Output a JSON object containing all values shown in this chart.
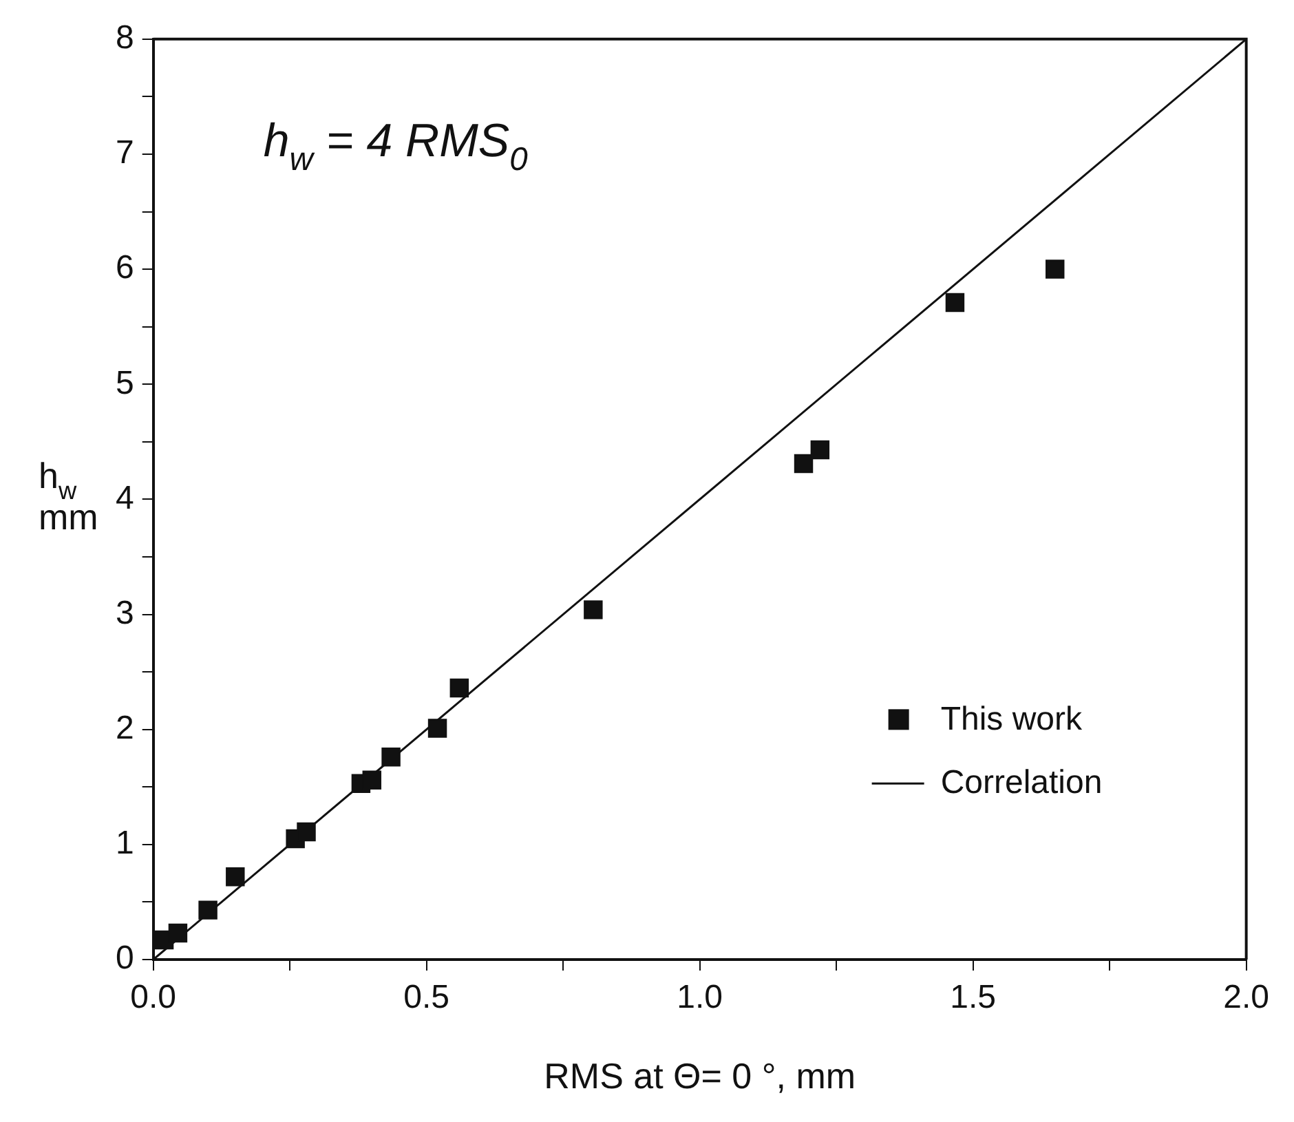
{
  "chart_data": {
    "type": "scatter",
    "xlabel": "RMS at Θ= 0 °, mm",
    "ylabel": "h$_{w}$ mm",
    "annotations": [
      "h$_{w}$ = 4 RMS$_{0}$"
    ],
    "series": [
      {
        "name": "This work",
        "marker": "square",
        "color": "#111111",
        "x": [
          0.02,
          0.045,
          0.1,
          0.15,
          0.26,
          0.28,
          0.38,
          0.4,
          0.435,
          0.52,
          0.56,
          0.805,
          1.19,
          1.22,
          1.467,
          1.65
        ],
        "values": [
          0.17,
          0.23,
          0.43,
          0.72,
          1.05,
          1.11,
          1.53,
          1.56,
          1.76,
          2.01,
          2.36,
          3.04,
          4.31,
          4.43,
          5.71,
          6.0
        ]
      },
      {
        "name": "Correlation",
        "type": "line",
        "marker": "none",
        "color": "#111111",
        "x": [
          0,
          2
        ],
        "values": [
          0,
          8
        ]
      }
    ],
    "xlim": [
      0,
      2
    ],
    "ylim": [
      0,
      8
    ],
    "xticks": [
      {
        "value": 0,
        "label": "0.0"
      },
      {
        "value": 0.25,
        "label": null
      },
      {
        "value": 0.5,
        "label": "0.5"
      },
      {
        "value": 0.75,
        "label": null
      },
      {
        "value": 1,
        "label": "1.0"
      },
      {
        "value": 1.25,
        "label": null
      },
      {
        "value": 1.5,
        "label": "1.5"
      },
      {
        "value": 1.75,
        "label": null
      },
      {
        "value": 2,
        "label": "2.0"
      }
    ],
    "yticks": [
      0,
      {
        "value": 0.5,
        "label": null
      },
      1,
      {
        "value": 1.5,
        "label": null
      },
      2,
      {
        "value": 2.5,
        "label": null
      },
      3,
      {
        "value": 3.5,
        "label": null
      },
      4,
      {
        "value": 4.5,
        "label": null
      },
      5,
      {
        "value": 5.5,
        "label": null
      },
      6,
      {
        "value": 6.5,
        "label": null
      },
      7,
      {
        "value": 7.5,
        "label": null
      },
      8
    ],
    "grid": false,
    "legend": "right",
    "line_style": "solid"
  }
}
